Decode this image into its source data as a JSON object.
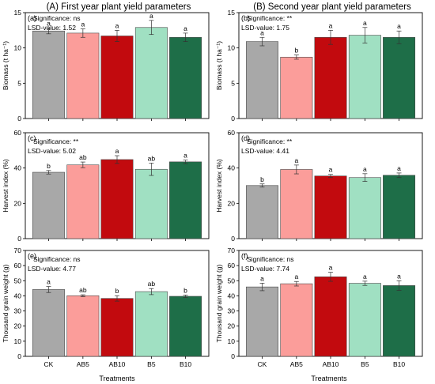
{
  "columns": [
    {
      "title": "(A) First year plant yield parameters"
    },
    {
      "title": "(B) Second year plant yield parameters"
    }
  ],
  "x_axis_title": "Treatments",
  "categories": [
    "CK",
    "AB5",
    "AB10",
    "B5",
    "B10"
  ],
  "colors": [
    "#a8a8a8",
    "#fb9d9a",
    "#c20a0e",
    "#a0e0c2",
    "#1e6e48"
  ],
  "chart_data": [
    {
      "type": "bar",
      "panel": "(a)",
      "ylabel": "Biomass (t ha⁻¹)",
      "significance": "Significance: ns",
      "lsd": "LSD-value: 1.52",
      "ylim": [
        0,
        15
      ],
      "yticks": [
        0,
        5,
        10,
        15
      ],
      "categories": [
        "CK",
        "AB5",
        "AB10",
        "B5",
        "B10"
      ],
      "values": [
        12.4,
        12.1,
        11.7,
        12.9,
        11.5
      ],
      "errors": [
        0.4,
        0.6,
        0.8,
        1.0,
        0.6
      ],
      "letters": [
        "a",
        "a",
        "a",
        "a",
        "a"
      ]
    },
    {
      "type": "bar",
      "panel": "(b)",
      "ylabel": "Biomass (t ha⁻¹)",
      "significance": "Significance: **",
      "lsd": "LSD-value: 1.75",
      "ylim": [
        0,
        15
      ],
      "yticks": [
        0,
        5,
        10,
        15
      ],
      "categories": [
        "CK",
        "AB5",
        "AB10",
        "B5",
        "B10"
      ],
      "values": [
        10.9,
        8.7,
        11.5,
        11.8,
        11.5
      ],
      "errors": [
        0.6,
        0.3,
        1.0,
        1.1,
        0.9
      ],
      "letters": [
        "a",
        "b",
        "a",
        "a",
        "a"
      ]
    },
    {
      "type": "bar",
      "panel": "(c)",
      "ylabel": "Harvest index (%)",
      "significance": "Significance: **",
      "lsd": "LSD-value: 5.02",
      "ylim": [
        0,
        60
      ],
      "yticks": [
        0,
        20,
        40,
        60
      ],
      "categories": [
        "CK",
        "AB5",
        "AB10",
        "B5",
        "B10"
      ],
      "values": [
        37.6,
        41.8,
        44.8,
        39.3,
        43.5
      ],
      "errors": [
        1.0,
        1.6,
        2.2,
        3.5,
        1.0
      ],
      "letters": [
        "b",
        "ab",
        "a",
        "ab",
        "a"
      ]
    },
    {
      "type": "bar",
      "panel": "(d)",
      "ylabel": "Harvest index (%)",
      "significance": "Significance: **",
      "lsd": "LSD-value: 4.41",
      "ylim": [
        0,
        60
      ],
      "yticks": [
        0,
        20,
        40,
        60
      ],
      "categories": [
        "CK",
        "AB5",
        "AB10",
        "B5",
        "B10"
      ],
      "values": [
        30.1,
        39.2,
        35.5,
        34.6,
        35.9
      ],
      "errors": [
        0.9,
        2.5,
        0.9,
        2.2,
        1.3
      ],
      "letters": [
        "b",
        "a",
        "a",
        "a",
        "a"
      ]
    },
    {
      "type": "bar",
      "panel": "(e)",
      "ylabel": "Thousand grain weight (g)",
      "significance": "Significance: ns",
      "lsd": "LSD-value: 4.77",
      "ylim": [
        0,
        70
      ],
      "yticks": [
        0,
        10,
        20,
        30,
        40,
        50,
        60,
        70
      ],
      "categories": [
        "CK",
        "AB5",
        "AB10",
        "B5",
        "B10"
      ],
      "values": [
        44.2,
        40.1,
        38.3,
        42.8,
        39.7
      ],
      "errors": [
        2.0,
        0.6,
        1.8,
        2.0,
        0.8
      ],
      "letters": [
        "a",
        "ab",
        "b",
        "ab",
        "b"
      ]
    },
    {
      "type": "bar",
      "panel": "(f)",
      "ylabel": "Thousand grain weight (g)",
      "significance": "Significance: ns",
      "lsd": "LSD-value: 7.74",
      "ylim": [
        0,
        70
      ],
      "yticks": [
        0,
        10,
        20,
        30,
        40,
        50,
        60,
        70
      ],
      "categories": [
        "CK",
        "AB5",
        "AB10",
        "B5",
        "B10"
      ],
      "values": [
        45.9,
        48.0,
        52.6,
        48.3,
        46.8
      ],
      "errors": [
        2.5,
        1.5,
        3.0,
        1.4,
        3.2
      ],
      "letters": [
        "a",
        "a",
        "a",
        "a",
        "a"
      ]
    }
  ]
}
